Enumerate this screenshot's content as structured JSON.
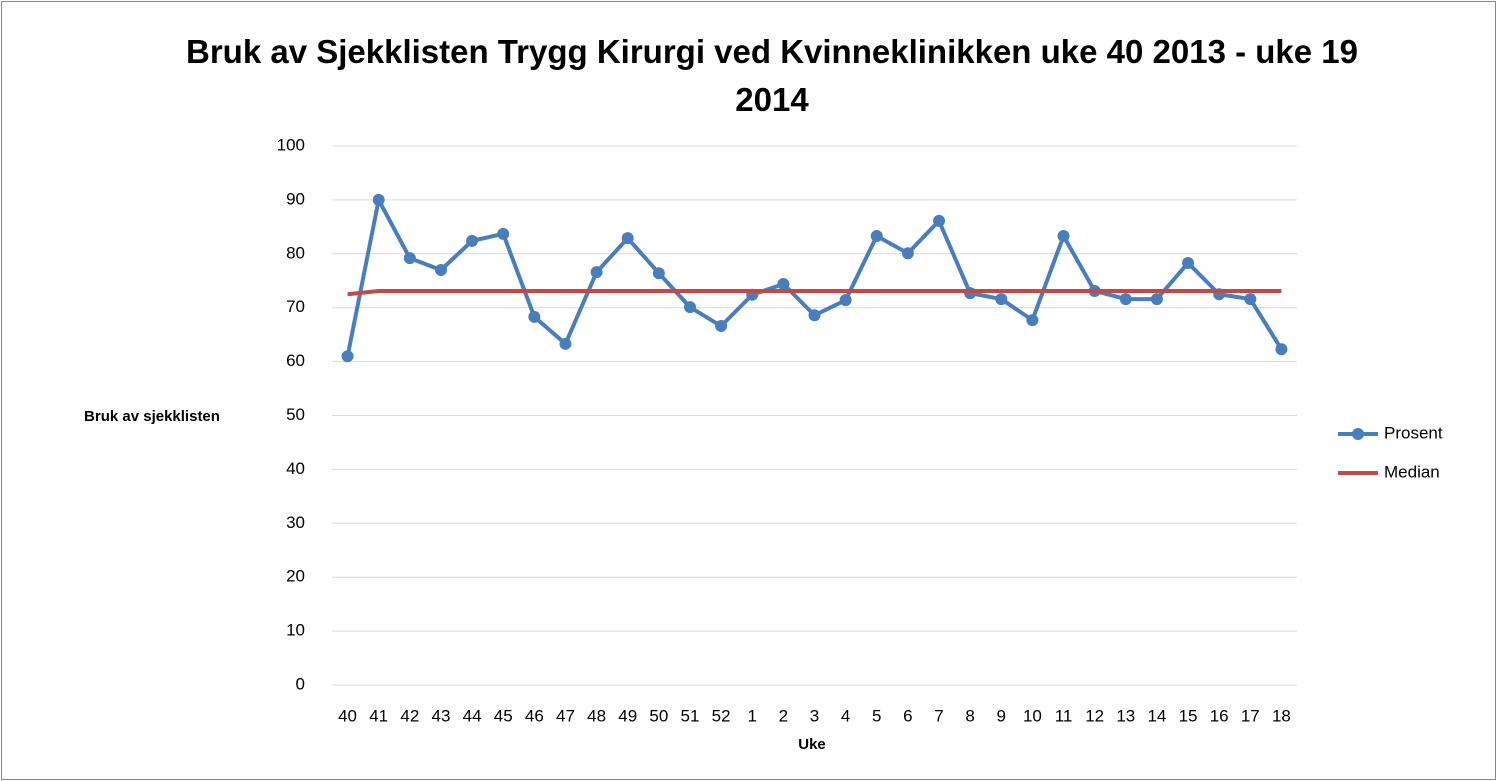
{
  "chart_data": {
    "type": "line",
    "title": "Bruk av Sjekklisten Trygg Kirurgi ved Kvinneklinikken uke 40 2013 - uke 19 2014",
    "x_label": "Uke",
    "y_label": "Bruk av sjekklisten",
    "categories": [
      "40",
      "41",
      "42",
      "43",
      "44",
      "45",
      "46",
      "47",
      "48",
      "49",
      "50",
      "51",
      "52",
      "1",
      "2",
      "3",
      "4",
      "5",
      "6",
      "7",
      "8",
      "9",
      "10",
      "11",
      "12",
      "13",
      "14",
      "15",
      "16",
      "17",
      "18"
    ],
    "series": [
      {
        "name": "Prosent",
        "color": "#4a7ebb",
        "marker": true,
        "values": [
          61,
          90,
          79.2,
          77,
          82.4,
          83.7,
          68.3,
          63.3,
          76.6,
          82.9,
          76.4,
          70.1,
          66.6,
          72.4,
          74.4,
          68.6,
          71.4,
          83.3,
          80.1,
          86.1,
          72.7,
          71.6,
          67.7,
          83.3,
          73.1,
          71.6,
          71.6,
          78.3,
          72.5,
          71.6,
          62.3
        ]
      },
      {
        "name": "Median",
        "color": "#be4b48",
        "marker": false,
        "values": [
          72.5,
          73.1,
          73.1,
          73.1,
          73.1,
          73.1,
          73.1,
          73.1,
          73.1,
          73.1,
          73.1,
          73.1,
          73.1,
          73.1,
          73.1,
          73.1,
          73.1,
          73.1,
          73.1,
          73.1,
          73.1,
          73.1,
          73.1,
          73.1,
          73.1,
          73.1,
          73.1,
          73.1,
          73.1,
          73.1,
          73.1
        ]
      }
    ],
    "ylim": [
      0,
      100
    ],
    "yticks": [
      0,
      10,
      20,
      30,
      40,
      50,
      60,
      70,
      80,
      90,
      100
    ],
    "grid": true,
    "legend": "right"
  }
}
